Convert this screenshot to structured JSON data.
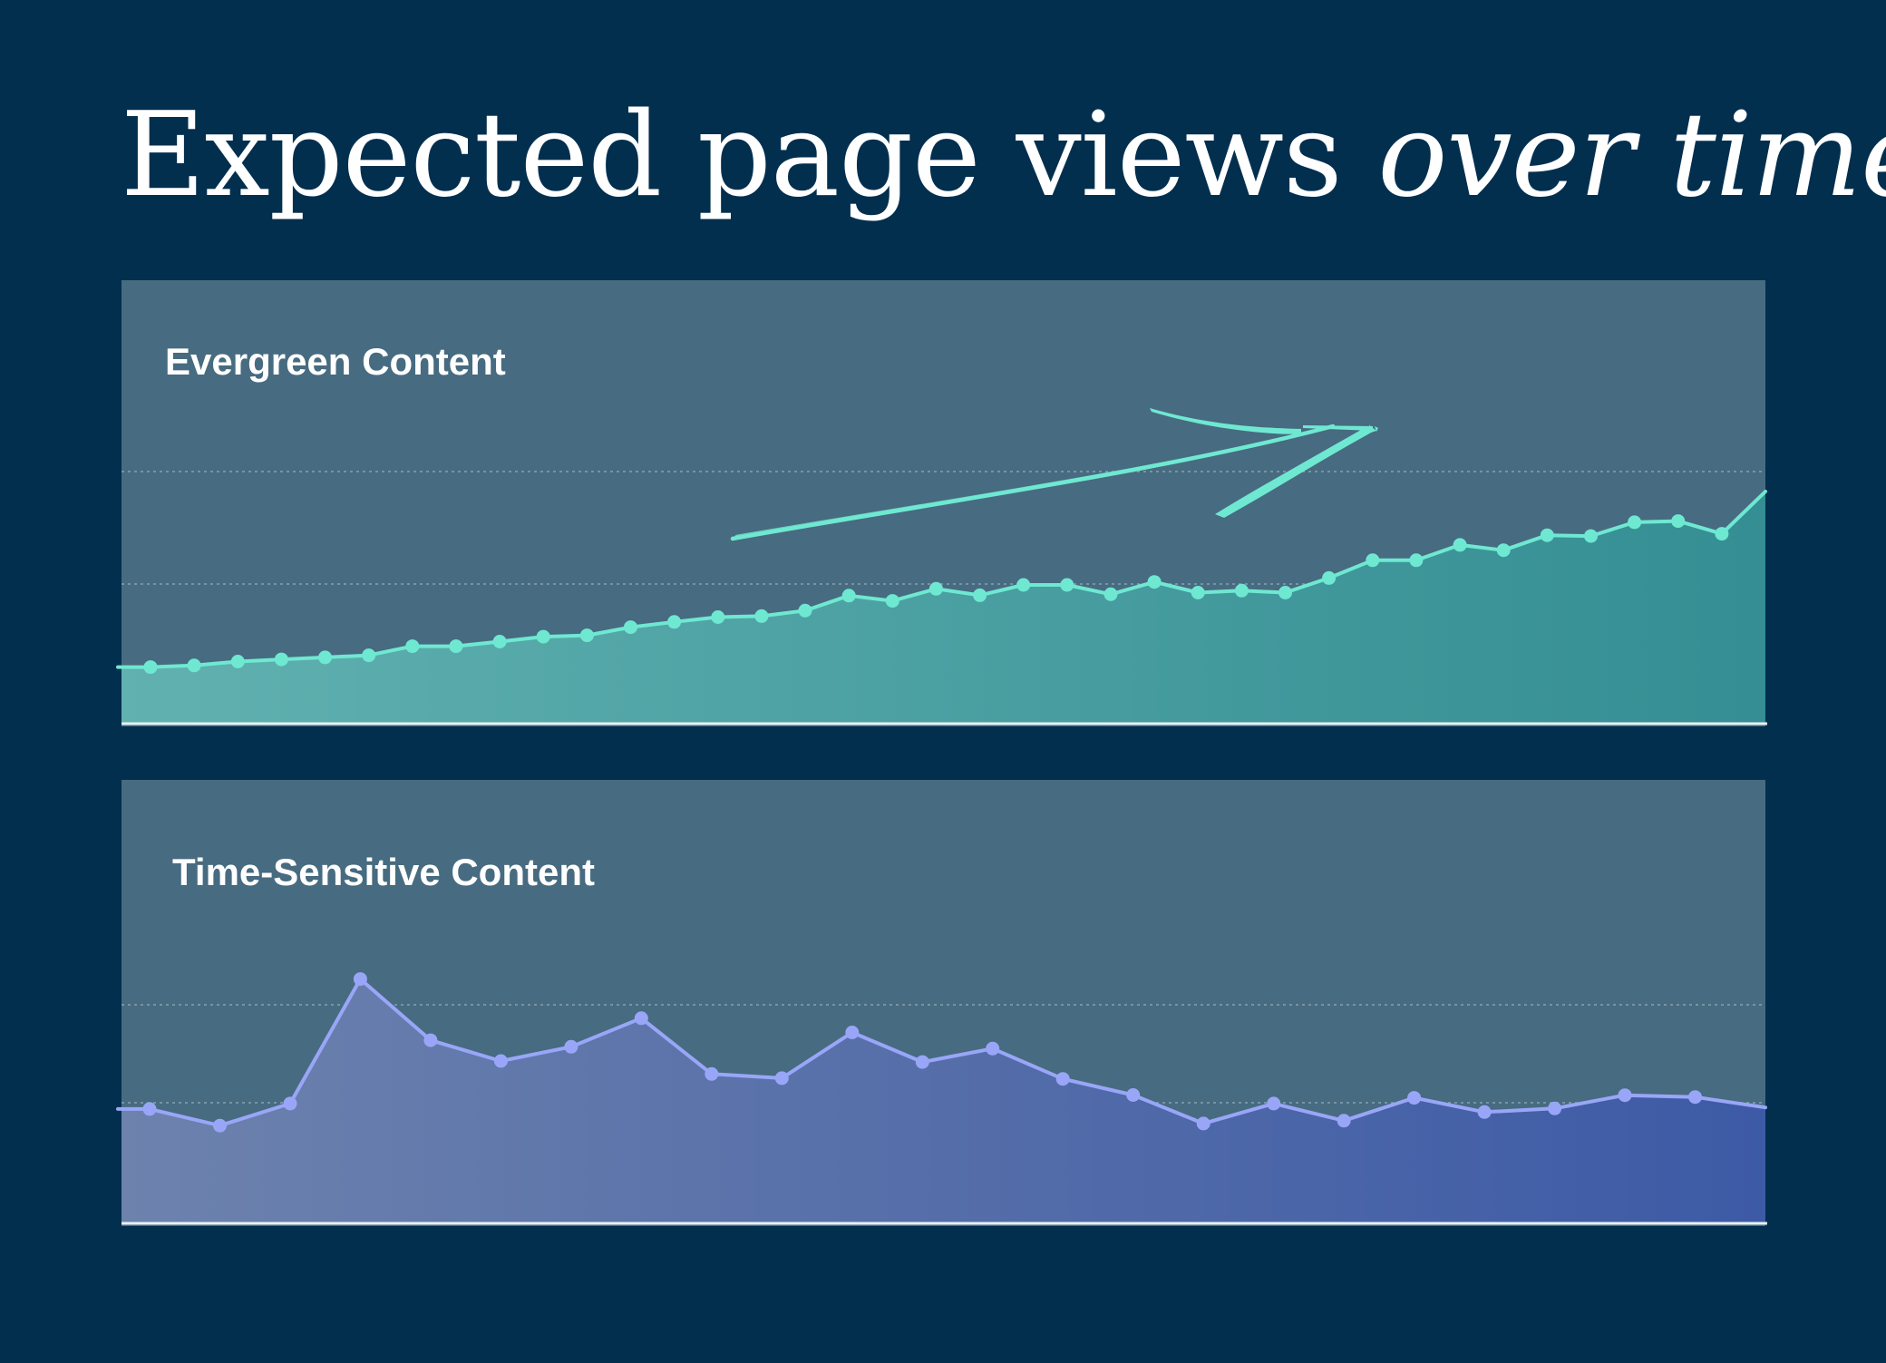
{
  "title": {
    "plain": "Expected page views",
    "italic": "over time"
  },
  "chart_data": [
    {
      "type": "area",
      "title": "Evergreen Content",
      "color": "#6fe8d2",
      "fill_from": "#61b1b0",
      "fill_to": "#348e93",
      "annotation": "upward trend arrow",
      "grid": true,
      "ylim": [
        0,
        100
      ],
      "values": [
        13.2,
        14.0,
        15.9,
        17.0,
        18.0,
        19.0,
        23.5,
        23.5,
        25.8,
        28.2,
        28.9,
        32.9,
        35.5,
        37.9,
        38.4,
        41.1,
        48.5,
        45.9,
        51.9,
        48.7,
        53.8,
        53.8,
        49.2,
        55.3,
        50.0,
        51.0,
        50.0,
        57.2,
        66.0,
        66.0,
        73.6,
        71.0,
        78.4,
        78.0,
        84.8,
        85.4,
        79.1,
        100.0
      ]
    },
    {
      "type": "area",
      "title": "Time-Sensitive Content",
      "color": "#99a6f8",
      "fill_from": "#6d82ad",
      "fill_to": "#3d5aa6",
      "grid": true,
      "ylim": [
        0,
        100
      ],
      "values": [
        33.6,
        27.2,
        35.7,
        83.7,
        60.1,
        52.1,
        57.6,
        68.6,
        47.1,
        45.5,
        63.1,
        51.7,
        56.9,
        45.2,
        39.0,
        28.0,
        35.7,
        29.1,
        37.9,
        32.4,
        33.8,
        38.9,
        38.2,
        34.2
      ]
    }
  ]
}
